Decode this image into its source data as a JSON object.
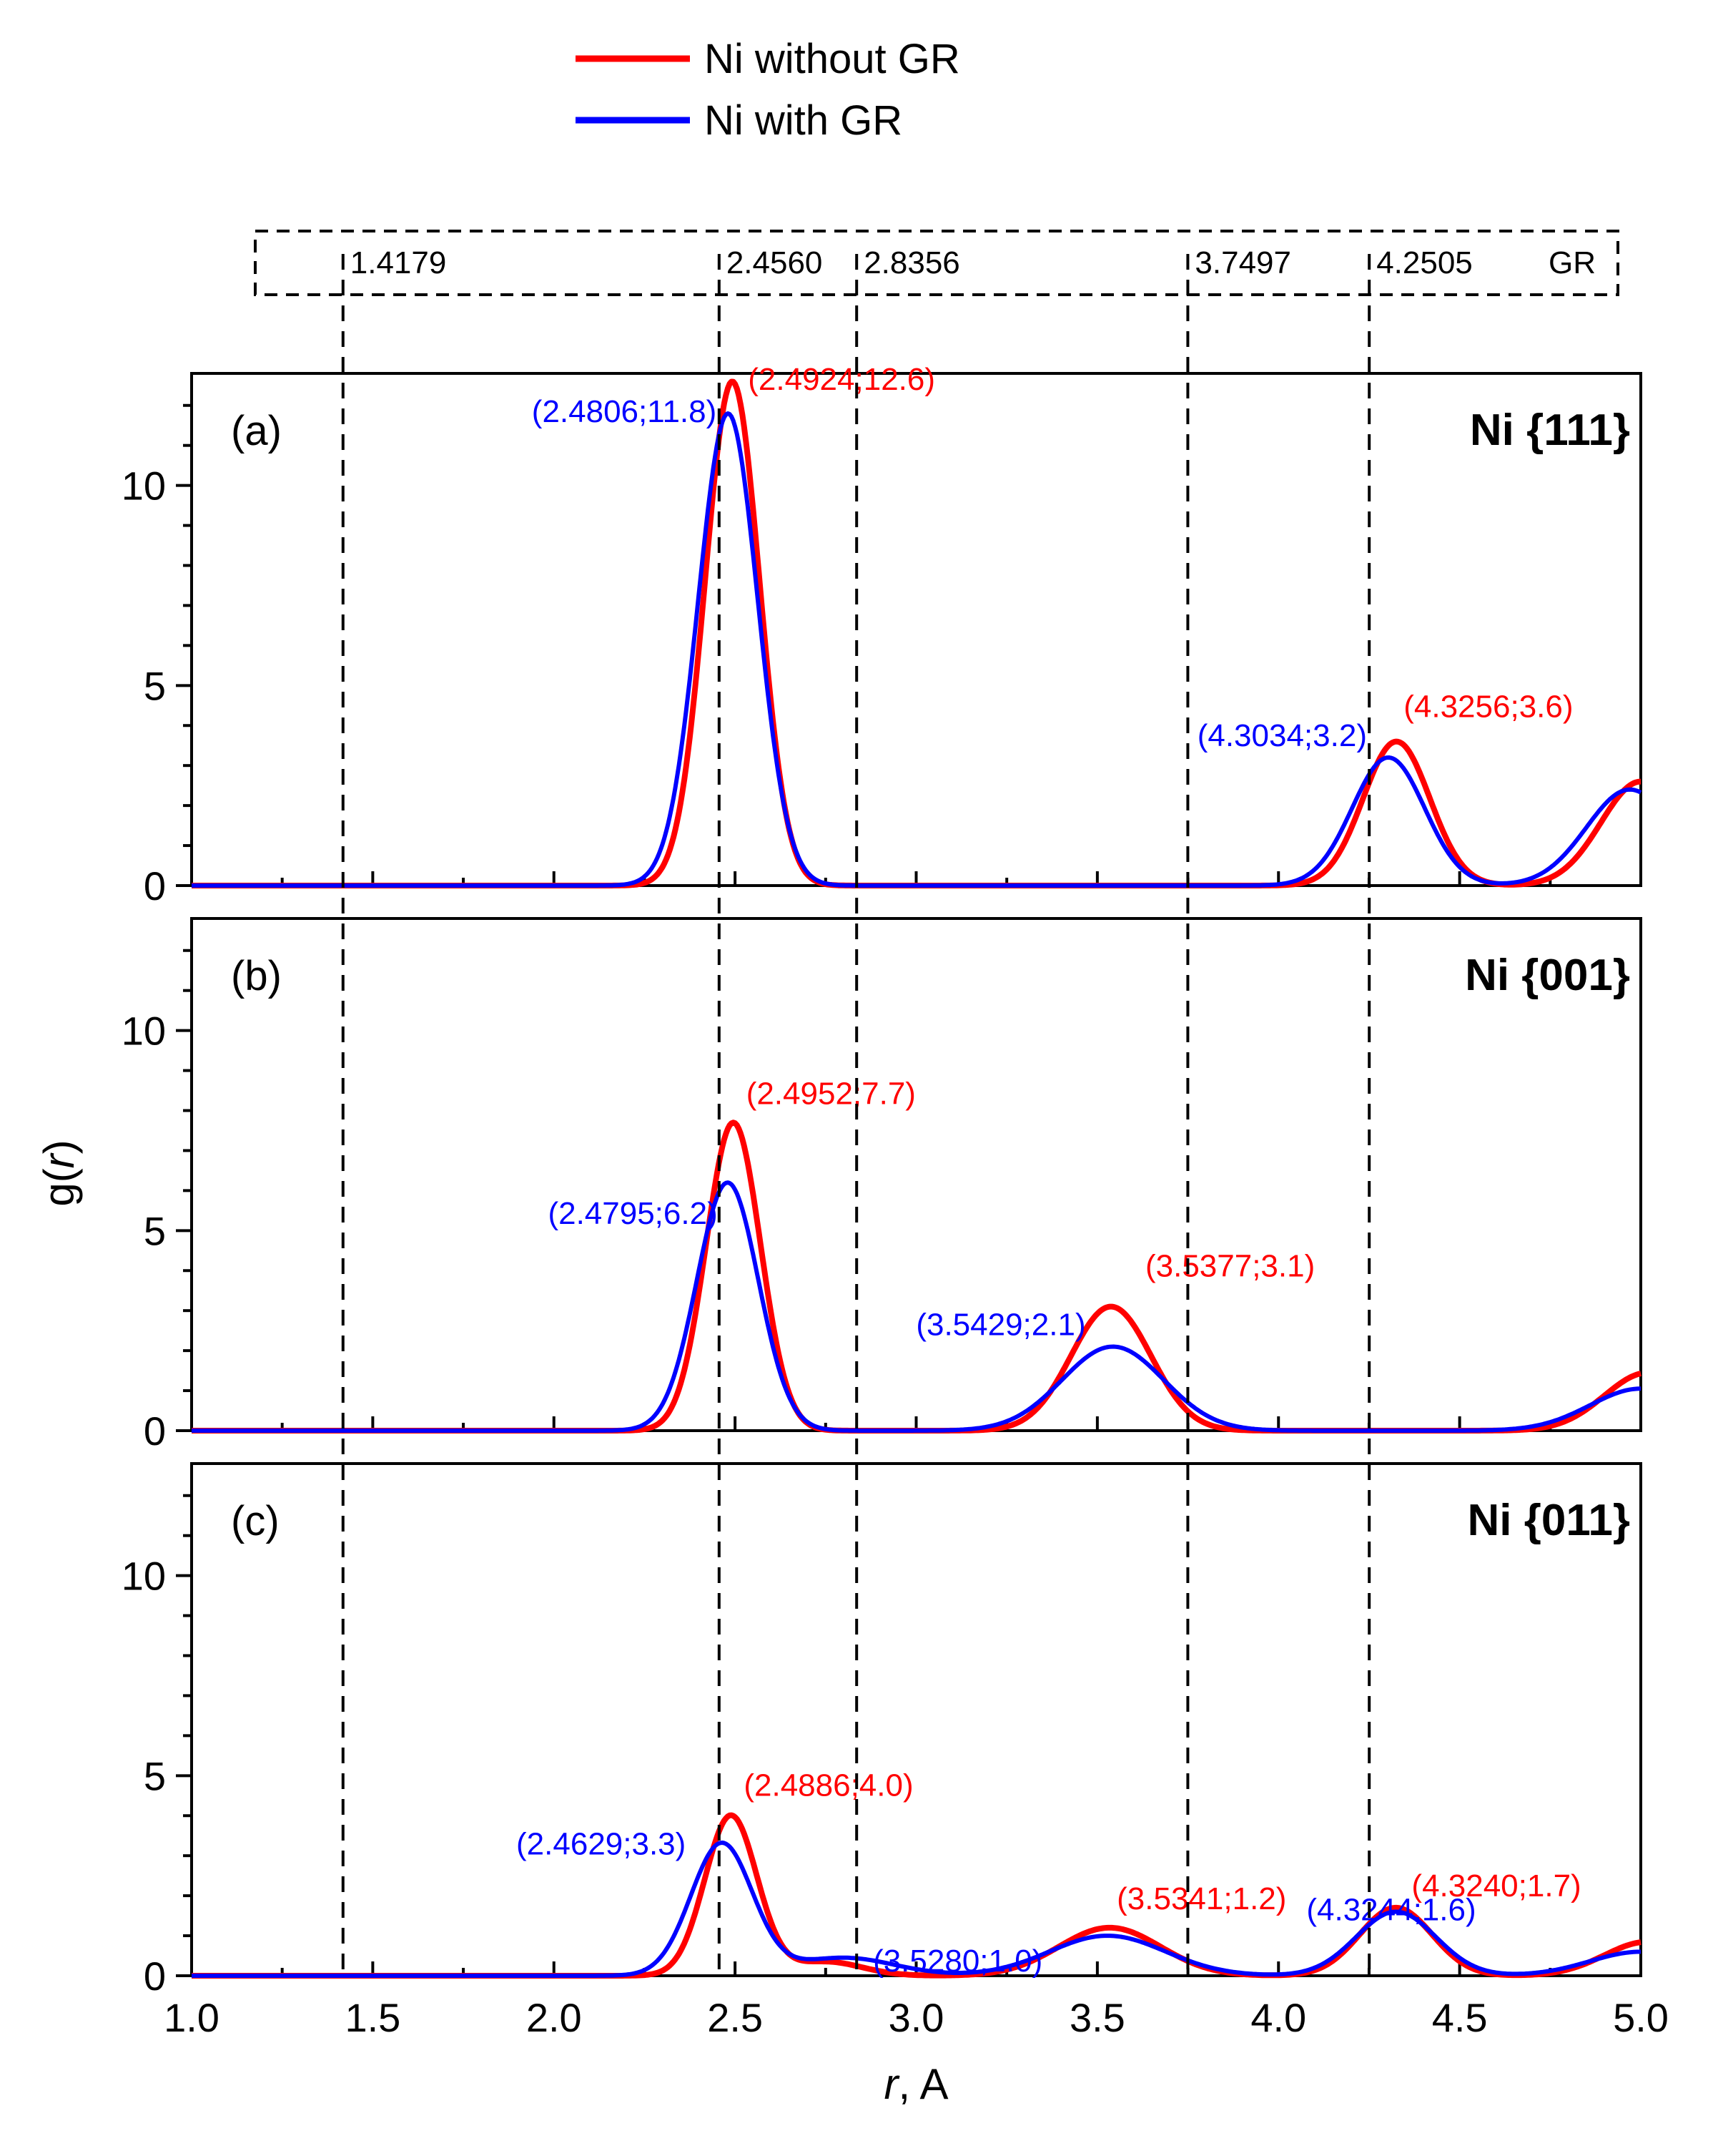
{
  "legend": [
    {
      "label": "Ni without GR",
      "color": "#ff0000"
    },
    {
      "label": "Ni with GR",
      "color": "#0000ff"
    }
  ],
  "gr_box": {
    "lines": [
      {
        "x": 1.4179,
        "label": "1.4179"
      },
      {
        "x": 2.456,
        "label": "2.4560"
      },
      {
        "x": 2.8356,
        "label": "2.8356"
      },
      {
        "x": 3.7497,
        "label": "3.7497"
      },
      {
        "x": 4.2505,
        "label": "4.2505"
      }
    ],
    "tag": "GR"
  },
  "axes": {
    "xlabel_italic": "r",
    "xlabel_rest": ", A",
    "ylabel_prefix": "g(",
    "ylabel_italic": "r",
    "ylabel_suffix": ")",
    "xticks": [
      "1.0",
      "1.5",
      "2.0",
      "2.5",
      "3.0",
      "3.5",
      "4.0",
      "4.5",
      "5.0"
    ],
    "yticks": [
      "0",
      "5",
      "10"
    ]
  },
  "chart_data": [
    {
      "type": "line",
      "panel": "(a)",
      "title": "Ni {111}",
      "xlim": [
        1.0,
        5.0
      ],
      "ylim": [
        0,
        12.8
      ],
      "series": [
        {
          "name": "Ni without GR",
          "color": "#ff0000",
          "peaks": [
            {
              "x": 2.4924,
              "y": 12.6,
              "w": 0.075
            },
            {
              "x": 4.3256,
              "y": 3.6,
              "w": 0.092
            },
            {
              "x": 5.0,
              "y": 2.6,
              "w": 0.11
            }
          ]
        },
        {
          "name": "Ni with GR",
          "color": "#0000ff",
          "peaks": [
            {
              "x": 2.4806,
              "y": 11.8,
              "w": 0.082
            },
            {
              "x": 4.3034,
              "y": 3.2,
              "w": 0.1
            },
            {
              "x": 4.97,
              "y": 2.4,
              "w": 0.12
            }
          ]
        }
      ],
      "annotations": [
        {
          "text": "(2.4806;11.8)",
          "x": 2.4806,
          "y": 11.8,
          "color": "#0000ff"
        },
        {
          "text": "(2.4924;12.6)",
          "x": 2.4924,
          "y": 12.6,
          "color": "#ff0000"
        },
        {
          "text": "(4.3034;3.2)",
          "x": 4.3034,
          "y": 3.2,
          "color": "#0000ff"
        },
        {
          "text": "(4.3256;3.6)",
          "x": 4.3256,
          "y": 3.6,
          "color": "#ff0000"
        }
      ]
    },
    {
      "type": "line",
      "panel": "(b)",
      "title": "Ni {001}",
      "xlim": [
        1.0,
        5.0
      ],
      "ylim": [
        0,
        12.8
      ],
      "series": [
        {
          "name": "Ni without GR",
          "color": "#ff0000",
          "peaks": [
            {
              "x": 2.4952,
              "y": 7.7,
              "w": 0.075
            },
            {
              "x": 3.5377,
              "y": 3.1,
              "w": 0.11
            },
            {
              "x": 5.02,
              "y": 1.45,
              "w": 0.12
            }
          ]
        },
        {
          "name": "Ni with GR",
          "color": "#0000ff",
          "peaks": [
            {
              "x": 2.4795,
              "y": 6.2,
              "w": 0.085
            },
            {
              "x": 3.5429,
              "y": 2.1,
              "w": 0.14
            },
            {
              "x": 5.0,
              "y": 1.05,
              "w": 0.14
            }
          ]
        }
      ],
      "annotations": [
        {
          "text": "(2.4795;6.2)",
          "x": 2.4795,
          "y": 6.2,
          "color": "#0000ff"
        },
        {
          "text": "(2.4952;7.7)",
          "x": 2.4952,
          "y": 7.7,
          "color": "#ff0000"
        },
        {
          "text": "(3.5429;2.1)",
          "x": 3.5429,
          "y": 2.1,
          "color": "#0000ff"
        },
        {
          "text": "(3.5377;3.1)",
          "x": 3.5377,
          "y": 3.1,
          "color": "#ff0000"
        }
      ]
    },
    {
      "type": "line",
      "panel": "(c)",
      "title": "Ni {011}",
      "xlim": [
        1.0,
        5.0
      ],
      "ylim": [
        0,
        12.8
      ],
      "series": [
        {
          "name": "Ni without GR",
          "color": "#ff0000",
          "peaks": [
            {
              "x": 2.4886,
              "y": 4.0,
              "w": 0.072
            },
            {
              "x": 2.75,
              "y": 0.35,
              "w": 0.1
            },
            {
              "x": 3.5341,
              "y": 1.2,
              "w": 0.14
            },
            {
              "x": 4.324,
              "y": 1.7,
              "w": 0.1
            },
            {
              "x": 5.02,
              "y": 0.85,
              "w": 0.12
            }
          ]
        },
        {
          "name": "Ni with GR",
          "color": "#0000ff",
          "peaks": [
            {
              "x": 2.4629,
              "y": 3.3,
              "w": 0.085
            },
            {
              "x": 2.8,
              "y": 0.45,
              "w": 0.14
            },
            {
              "x": 3.528,
              "y": 1.0,
              "w": 0.16
            },
            {
              "x": 4.3244,
              "y": 1.6,
              "w": 0.11
            },
            {
              "x": 5.0,
              "y": 0.6,
              "w": 0.14
            }
          ]
        }
      ],
      "annotations": [
        {
          "text": "(2.4629;3.3)",
          "x": 2.4629,
          "y": 3.3,
          "color": "#0000ff"
        },
        {
          "text": "(2.4886;4.0)",
          "x": 2.4886,
          "y": 4.0,
          "color": "#ff0000"
        },
        {
          "text": "(3.5280;1.0)",
          "x": 3.528,
          "y": 1.0,
          "color": "#0000ff"
        },
        {
          "text": "(3.5341;1.2)",
          "x": 3.5341,
          "y": 1.2,
          "color": "#ff0000"
        },
        {
          "text": "(4.3244;1.6)",
          "x": 4.3244,
          "y": 1.6,
          "color": "#0000ff"
        },
        {
          "text": "(4.3240;1.7)",
          "x": 4.324,
          "y": 1.7,
          "color": "#ff0000"
        }
      ]
    }
  ]
}
